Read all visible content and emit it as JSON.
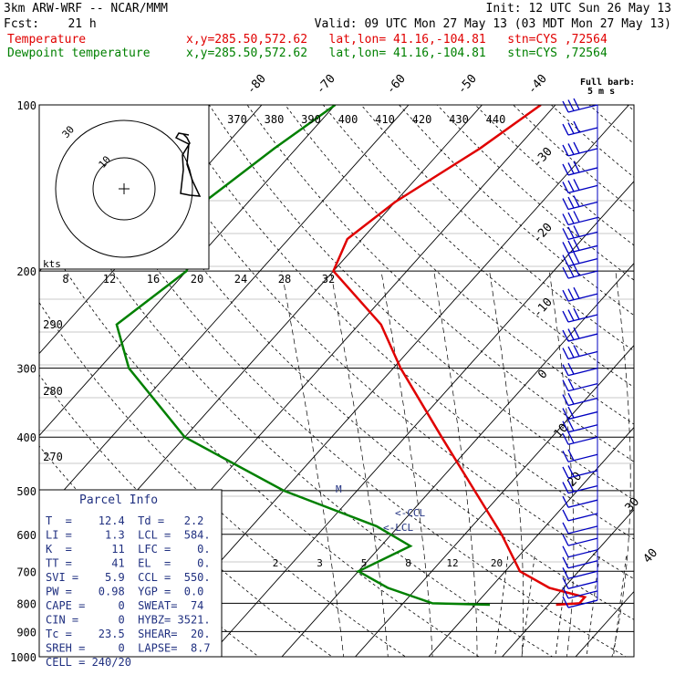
{
  "header": {
    "model": "3km ARW-WRF -- NCAR/MMM",
    "init": "Init: 12 UTC Sun 26 May 13",
    "fcst": "Fcst:    21 h",
    "valid": "Valid: 09 UTC Mon 27 May 13 (03 MDT Mon 27 May 13)",
    "temp_label": "Temperature",
    "dew_label": "Dewpoint temperature",
    "temp_loc": "x,y=285.50,572.62   lat,lon= 41.16,-104.81   stn=CYS ,72564",
    "dew_loc": "x,y=285.50,572.62   lat,lon= 41.16,-104.81   stn=CYS ,72564"
  },
  "barb_key": {
    "line1": "Full barb:",
    "line2": "5 m s"
  },
  "colors": {
    "temperature": "#e00000",
    "dewpoint": "#008000",
    "hodograph": "#000000",
    "barbs": "#0000c0",
    "grid": "#000000"
  },
  "chart_data": {
    "type": "skew-t log-p",
    "pressure_ticks": [
      "100",
      "200",
      "300",
      "400",
      "500",
      "600",
      "700",
      "800",
      "900",
      "1000"
    ],
    "temp_isotherm_labels": [
      "-80",
      "-70",
      "-60",
      "-50",
      "-40",
      "-30",
      "-20",
      "-10",
      "0",
      "10",
      "20",
      "30",
      "40"
    ],
    "theta_labels": [
      "370",
      "380",
      "390",
      "400",
      "410",
      "420",
      "430",
      "440"
    ],
    "dry_adiabat_labels": [
      "290",
      "280",
      "270"
    ],
    "mixing_ratio_labels": [
      "2",
      "3",
      "5",
      "8",
      "12",
      "20"
    ],
    "hodo_speed_labels": [
      "8",
      "12",
      "16",
      "20",
      "24",
      "28",
      "32"
    ],
    "hodo_units": "kts",
    "hodo_ring_labels": [
      "10",
      "30"
    ],
    "lcl_label": "LCL",
    "ccl_label": "CCL",
    "temperature": [
      {
        "p": 100,
        "t": -52
      },
      {
        "p": 120,
        "t": -55
      },
      {
        "p": 150,
        "t": -60
      },
      {
        "p": 175,
        "t": -62
      },
      {
        "p": 200,
        "t": -60
      },
      {
        "p": 250,
        "t": -47
      },
      {
        "p": 300,
        "t": -39
      },
      {
        "p": 400,
        "t": -25
      },
      {
        "p": 500,
        "t": -14
      },
      {
        "p": 600,
        "t": -5
      },
      {
        "p": 700,
        "t": 2
      },
      {
        "p": 750,
        "t": 8
      },
      {
        "p": 780,
        "t": 14
      },
      {
        "p": 800,
        "t": 14
      },
      {
        "p": 805,
        "t": 11
      }
    ],
    "dewpoint": [
      {
        "p": 100,
        "t": -80
      },
      {
        "p": 120,
        "t": -83
      },
      {
        "p": 150,
        "t": -86
      },
      {
        "p": 200,
        "t": -80
      },
      {
        "p": 250,
        "t": -83
      },
      {
        "p": 300,
        "t": -76
      },
      {
        "p": 400,
        "t": -60
      },
      {
        "p": 500,
        "t": -40
      },
      {
        "p": 580,
        "t": -23
      },
      {
        "p": 630,
        "t": -16
      },
      {
        "p": 700,
        "t": -20
      },
      {
        "p": 750,
        "t": -14
      },
      {
        "p": 800,
        "t": -6
      },
      {
        "p": 805,
        "t": 2
      }
    ],
    "wind_barbs": [
      {
        "p": 100
      },
      {
        "p": 110
      },
      {
        "p": 120
      },
      {
        "p": 130
      },
      {
        "p": 140
      },
      {
        "p": 150
      },
      {
        "p": 160
      },
      {
        "p": 170
      },
      {
        "p": 180
      },
      {
        "p": 190
      },
      {
        "p": 200
      },
      {
        "p": 220
      },
      {
        "p": 240
      },
      {
        "p": 260
      },
      {
        "p": 280
      },
      {
        "p": 300
      },
      {
        "p": 320
      },
      {
        "p": 340
      },
      {
        "p": 360
      },
      {
        "p": 380
      },
      {
        "p": 400
      },
      {
        "p": 430
      },
      {
        "p": 460
      },
      {
        "p": 490
      },
      {
        "p": 520
      },
      {
        "p": 550
      },
      {
        "p": 580
      },
      {
        "p": 610
      },
      {
        "p": 640
      },
      {
        "p": 670
      },
      {
        "p": 700
      },
      {
        "p": 730
      },
      {
        "p": 760
      },
      {
        "p": 790
      }
    ]
  },
  "parcel_info": {
    "title": "Parcel Info",
    "rows": [
      "T  =    12.4  Td =   2.2",
      "LI =     1.3  LCL =  584.",
      "K  =      11  LFC =    0.",
      "TT =      41  EL  =    0.",
      "SVI =    5.9  CCL =  550.",
      "PW =    0.98  YGP =  0.0",
      "CAPE =     0  SWEAT=  74",
      "CIN =      0  HYBZ= 3521.",
      "Tc =    23.5  SHEAR=  20.",
      "SREH =     0  LAPSE=  8.7",
      "CELL = 240/20"
    ]
  }
}
